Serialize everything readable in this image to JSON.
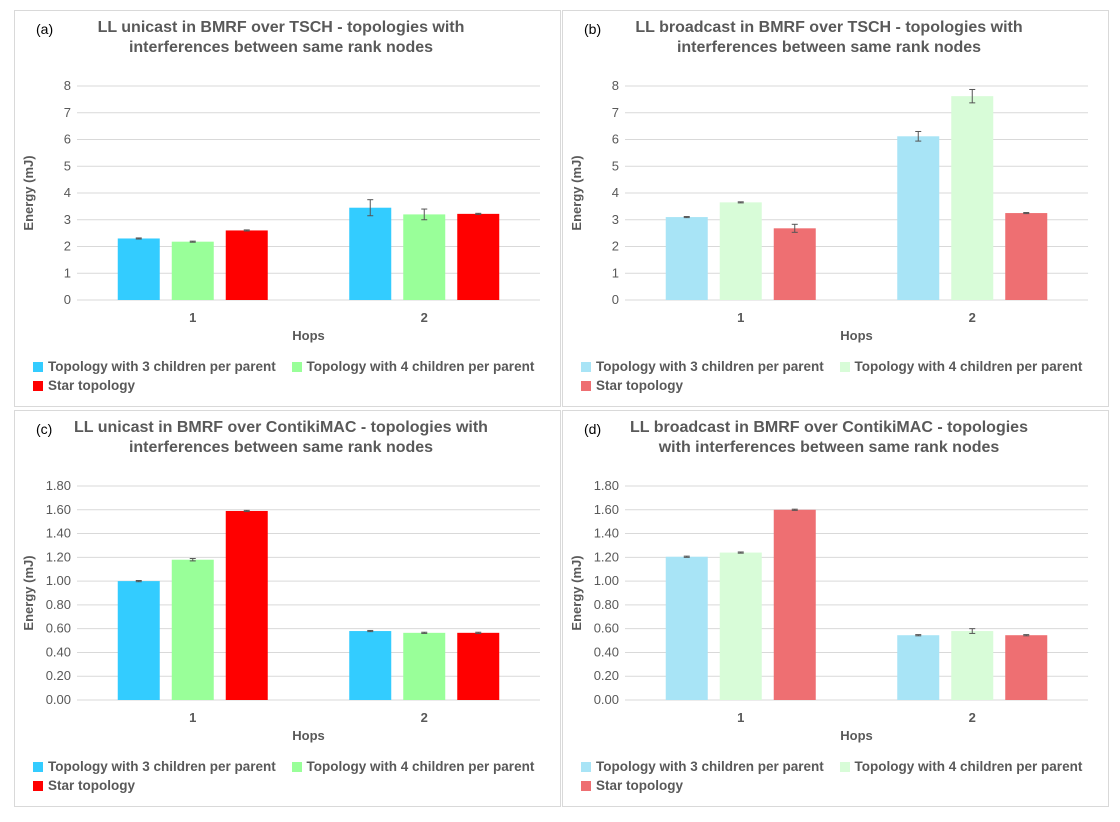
{
  "legend_labels": [
    "Topology with 3 children per parent",
    "Topology with 4 children per parent",
    "Star topology"
  ],
  "chart_data": [
    {
      "panel_letter": "(a)",
      "type": "bar",
      "title": "LL unicast in BMRF over TSCH - topologies with interferences between same rank nodes",
      "xlabel": "Hops",
      "ylabel": "Energy (mJ)",
      "categories": [
        "1",
        "2"
      ],
      "ylim": [
        0,
        8
      ],
      "yticks": [
        "0",
        "1",
        "2",
        "3",
        "4",
        "5",
        "6",
        "7",
        "8"
      ],
      "series": [
        {
          "name": "Topology with 3 children per parent",
          "color": "#33ccff",
          "values": [
            2.3,
            3.45
          ],
          "errors": [
            0.02,
            0.3
          ]
        },
        {
          "name": "Topology with 4 children per parent",
          "color": "#99ff99",
          "values": [
            2.18,
            3.2
          ],
          "errors": [
            0.02,
            0.2
          ]
        },
        {
          "name": "Star topology",
          "color": "#ff0000",
          "values": [
            2.6,
            3.22
          ],
          "errors": [
            0.02,
            0.02
          ]
        }
      ]
    },
    {
      "panel_letter": "(b)",
      "type": "bar",
      "title": "LL broadcast in BMRF over TSCH - topologies with interferences between same rank nodes",
      "xlabel": "Hops",
      "ylabel": "Energy (mJ)",
      "categories": [
        "1",
        "2"
      ],
      "ylim": [
        0,
        8
      ],
      "yticks": [
        "0",
        "1",
        "2",
        "3",
        "4",
        "5",
        "6",
        "7",
        "8"
      ],
      "series": [
        {
          "name": "Topology with 3 children per parent",
          "color": "#a8e4f6",
          "values": [
            3.1,
            6.12
          ],
          "errors": [
            0.02,
            0.18
          ]
        },
        {
          "name": "Topology with 4 children per parent",
          "color": "#d8fcd8",
          "values": [
            3.65,
            7.62
          ],
          "errors": [
            0.02,
            0.25
          ]
        },
        {
          "name": "Star topology",
          "color": "#ee6f72",
          "values": [
            2.68,
            3.25
          ],
          "errors": [
            0.15,
            0.02
          ]
        }
      ]
    },
    {
      "panel_letter": "(c)",
      "type": "bar",
      "title": "LL unicast in BMRF over ContikiMAC - topologies with interferences between same rank nodes",
      "xlabel": "Hops",
      "ylabel": "Energy (mJ)",
      "categories": [
        "1",
        "2"
      ],
      "ylim": [
        0,
        1.8
      ],
      "yticks": [
        "0.00",
        "0.20",
        "0.40",
        "0.60",
        "0.80",
        "1.00",
        "1.20",
        "1.40",
        "1.60",
        "1.80"
      ],
      "series": [
        {
          "name": "Topology with 3 children per parent",
          "color": "#33ccff",
          "values": [
            1.0,
            0.58
          ],
          "errors": [
            0.005,
            0.005
          ]
        },
        {
          "name": "Topology with 4 children per parent",
          "color": "#99ff99",
          "values": [
            1.18,
            0.565
          ],
          "errors": [
            0.01,
            0.005
          ]
        },
        {
          "name": "Star topology",
          "color": "#ff0000",
          "values": [
            1.59,
            0.565
          ],
          "errors": [
            0.005,
            0.005
          ]
        }
      ]
    },
    {
      "panel_letter": "(d)",
      "type": "bar",
      "title": "LL broadcast in BMRF over ContikiMAC - topologies with interferences between same rank nodes",
      "xlabel": "Hops",
      "ylabel": "Energy (mJ)",
      "categories": [
        "1",
        "2"
      ],
      "ylim": [
        0,
        1.8
      ],
      "yticks": [
        "0.00",
        "0.20",
        "0.40",
        "0.60",
        "0.80",
        "1.00",
        "1.20",
        "1.40",
        "1.60",
        "1.80"
      ],
      "series": [
        {
          "name": "Topology with 3 children per parent",
          "color": "#a8e4f6",
          "values": [
            1.205,
            0.545
          ],
          "errors": [
            0.005,
            0.005
          ]
        },
        {
          "name": "Topology with 4 children per parent",
          "color": "#d8fcd8",
          "values": [
            1.24,
            0.58
          ],
          "errors": [
            0.005,
            0.02
          ]
        },
        {
          "name": "Star topology",
          "color": "#ee6f72",
          "values": [
            1.6,
            0.545
          ],
          "errors": [
            0.005,
            0.005
          ]
        }
      ]
    }
  ]
}
